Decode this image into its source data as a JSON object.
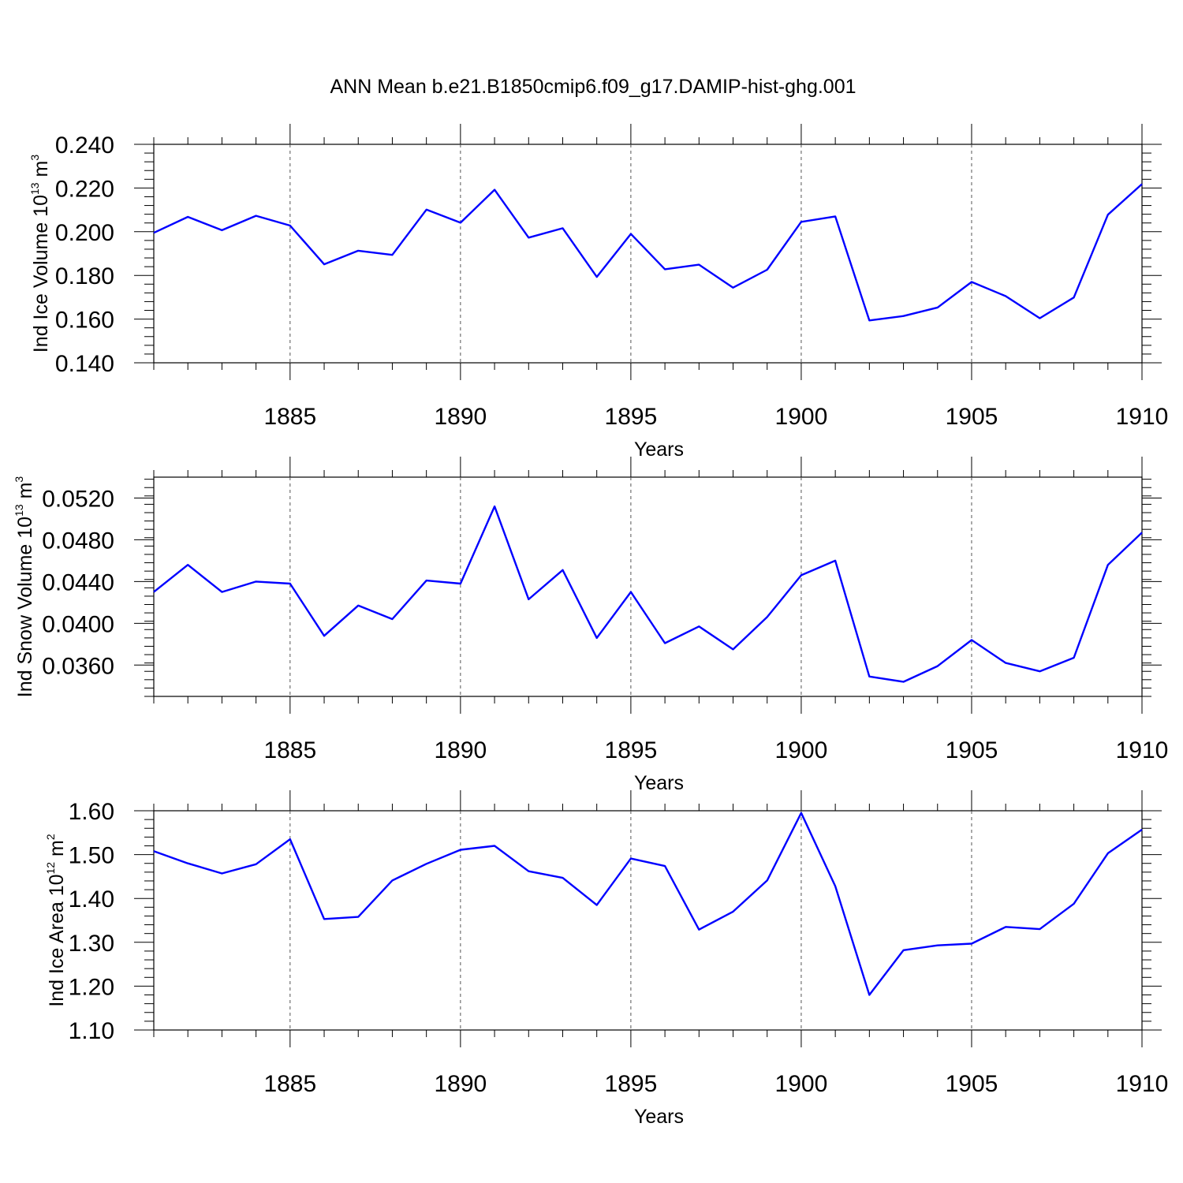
{
  "figure": {
    "title": "ANN Mean b.e21.B1850cmip6.f09_g17.DAMIP-hist-ghg.001"
  },
  "colors": {
    "line": "#0000ff",
    "axes": "#000000"
  },
  "chart_data": [
    {
      "type": "line",
      "ylabel": {
        "text": "Ind Ice Volume 10",
        "sup": "13",
        "unit": " m",
        "unit_sup": "3"
      },
      "xlabel": "Years",
      "xlim": [
        1881,
        1910
      ],
      "ylim": [
        0.14,
        0.24
      ],
      "xticks": [
        1885,
        1890,
        1895,
        1900,
        1905,
        1910
      ],
      "xtick_labels": [
        "1885",
        "1890",
        "1895",
        "1900",
        "1905",
        "1910"
      ],
      "yticks": [
        0.14,
        0.16,
        0.18,
        0.2,
        0.22,
        0.24
      ],
      "ytick_labels": [
        "0.140",
        "0.160",
        "0.180",
        "0.200",
        "0.220",
        "0.240"
      ],
      "grid": "vertical dashed at labeled years",
      "x": [
        1881,
        1882,
        1883,
        1884,
        1885,
        1886,
        1887,
        1888,
        1889,
        1890,
        1891,
        1892,
        1893,
        1894,
        1895,
        1896,
        1897,
        1898,
        1899,
        1900,
        1901,
        1902,
        1903,
        1904,
        1905,
        1906,
        1907,
        1908,
        1909,
        1910
      ],
      "values": [
        0.1995,
        0.2068,
        0.2007,
        0.2073,
        0.2028,
        0.1851,
        0.1913,
        0.1894,
        0.2101,
        0.2041,
        0.2192,
        0.1973,
        0.2016,
        0.1793,
        0.199,
        0.1828,
        0.1849,
        0.1744,
        0.1826,
        0.2045,
        0.207,
        0.1594,
        0.1614,
        0.1653,
        0.177,
        0.1705,
        0.1604,
        0.1699,
        0.2078,
        0.2218
      ]
    },
    {
      "type": "line",
      "ylabel": {
        "text": "Ind Snow Volume 10",
        "sup": "13",
        "unit": " m",
        "unit_sup": "3"
      },
      "xlabel": "Years",
      "xlim": [
        1881,
        1910
      ],
      "ylim": [
        0.033,
        0.054
      ],
      "xticks": [
        1885,
        1890,
        1895,
        1900,
        1905,
        1910
      ],
      "xtick_labels": [
        "1885",
        "1890",
        "1895",
        "1900",
        "1905",
        "1910"
      ],
      "yticks": [
        0.036,
        0.04,
        0.044,
        0.048,
        0.052
      ],
      "ytick_labels": [
        "0.0360",
        "0.0400",
        "0.0440",
        "0.0480",
        "0.0520"
      ],
      "grid": "vertical dashed at labeled years",
      "x": [
        1881,
        1882,
        1883,
        1884,
        1885,
        1886,
        1887,
        1888,
        1889,
        1890,
        1891,
        1892,
        1893,
        1894,
        1895,
        1896,
        1897,
        1898,
        1899,
        1900,
        1901,
        1902,
        1903,
        1904,
        1905,
        1906,
        1907,
        1908,
        1909,
        1910
      ],
      "values": [
        0.043,
        0.0456,
        0.043,
        0.044,
        0.0438,
        0.0388,
        0.0417,
        0.0404,
        0.0441,
        0.0438,
        0.0512,
        0.0423,
        0.0451,
        0.0386,
        0.043,
        0.0381,
        0.0397,
        0.0375,
        0.0406,
        0.0446,
        0.046,
        0.0349,
        0.0344,
        0.0359,
        0.0384,
        0.0362,
        0.0354,
        0.0367,
        0.0456,
        0.0487
      ]
    },
    {
      "type": "line",
      "ylabel": {
        "text": "Ind Ice Area 10",
        "sup": "12",
        "unit": " m",
        "unit_sup": "2"
      },
      "xlabel": "Years",
      "xlim": [
        1881,
        1910
      ],
      "ylim": [
        1.1,
        1.6
      ],
      "xticks": [
        1885,
        1890,
        1895,
        1900,
        1905,
        1910
      ],
      "xtick_labels": [
        "1885",
        "1890",
        "1895",
        "1900",
        "1905",
        "1910"
      ],
      "yticks": [
        1.1,
        1.2,
        1.3,
        1.4,
        1.5,
        1.6
      ],
      "ytick_labels": [
        "1.10",
        "1.20",
        "1.30",
        "1.40",
        "1.50",
        "1.60"
      ],
      "grid": "vertical dashed at labeled years",
      "x": [
        1881,
        1882,
        1883,
        1884,
        1885,
        1886,
        1887,
        1888,
        1889,
        1890,
        1891,
        1892,
        1893,
        1894,
        1895,
        1896,
        1897,
        1898,
        1899,
        1900,
        1901,
        1902,
        1903,
        1904,
        1905,
        1906,
        1907,
        1908,
        1909,
        1910
      ],
      "values": [
        1.508,
        1.48,
        1.457,
        1.478,
        1.535,
        1.353,
        1.358,
        1.441,
        1.479,
        1.511,
        1.52,
        1.462,
        1.447,
        1.385,
        1.491,
        1.474,
        1.329,
        1.37,
        1.441,
        1.595,
        1.428,
        1.18,
        1.282,
        1.293,
        1.297,
        1.335,
        1.33,
        1.388,
        1.503,
        1.557
      ]
    }
  ]
}
